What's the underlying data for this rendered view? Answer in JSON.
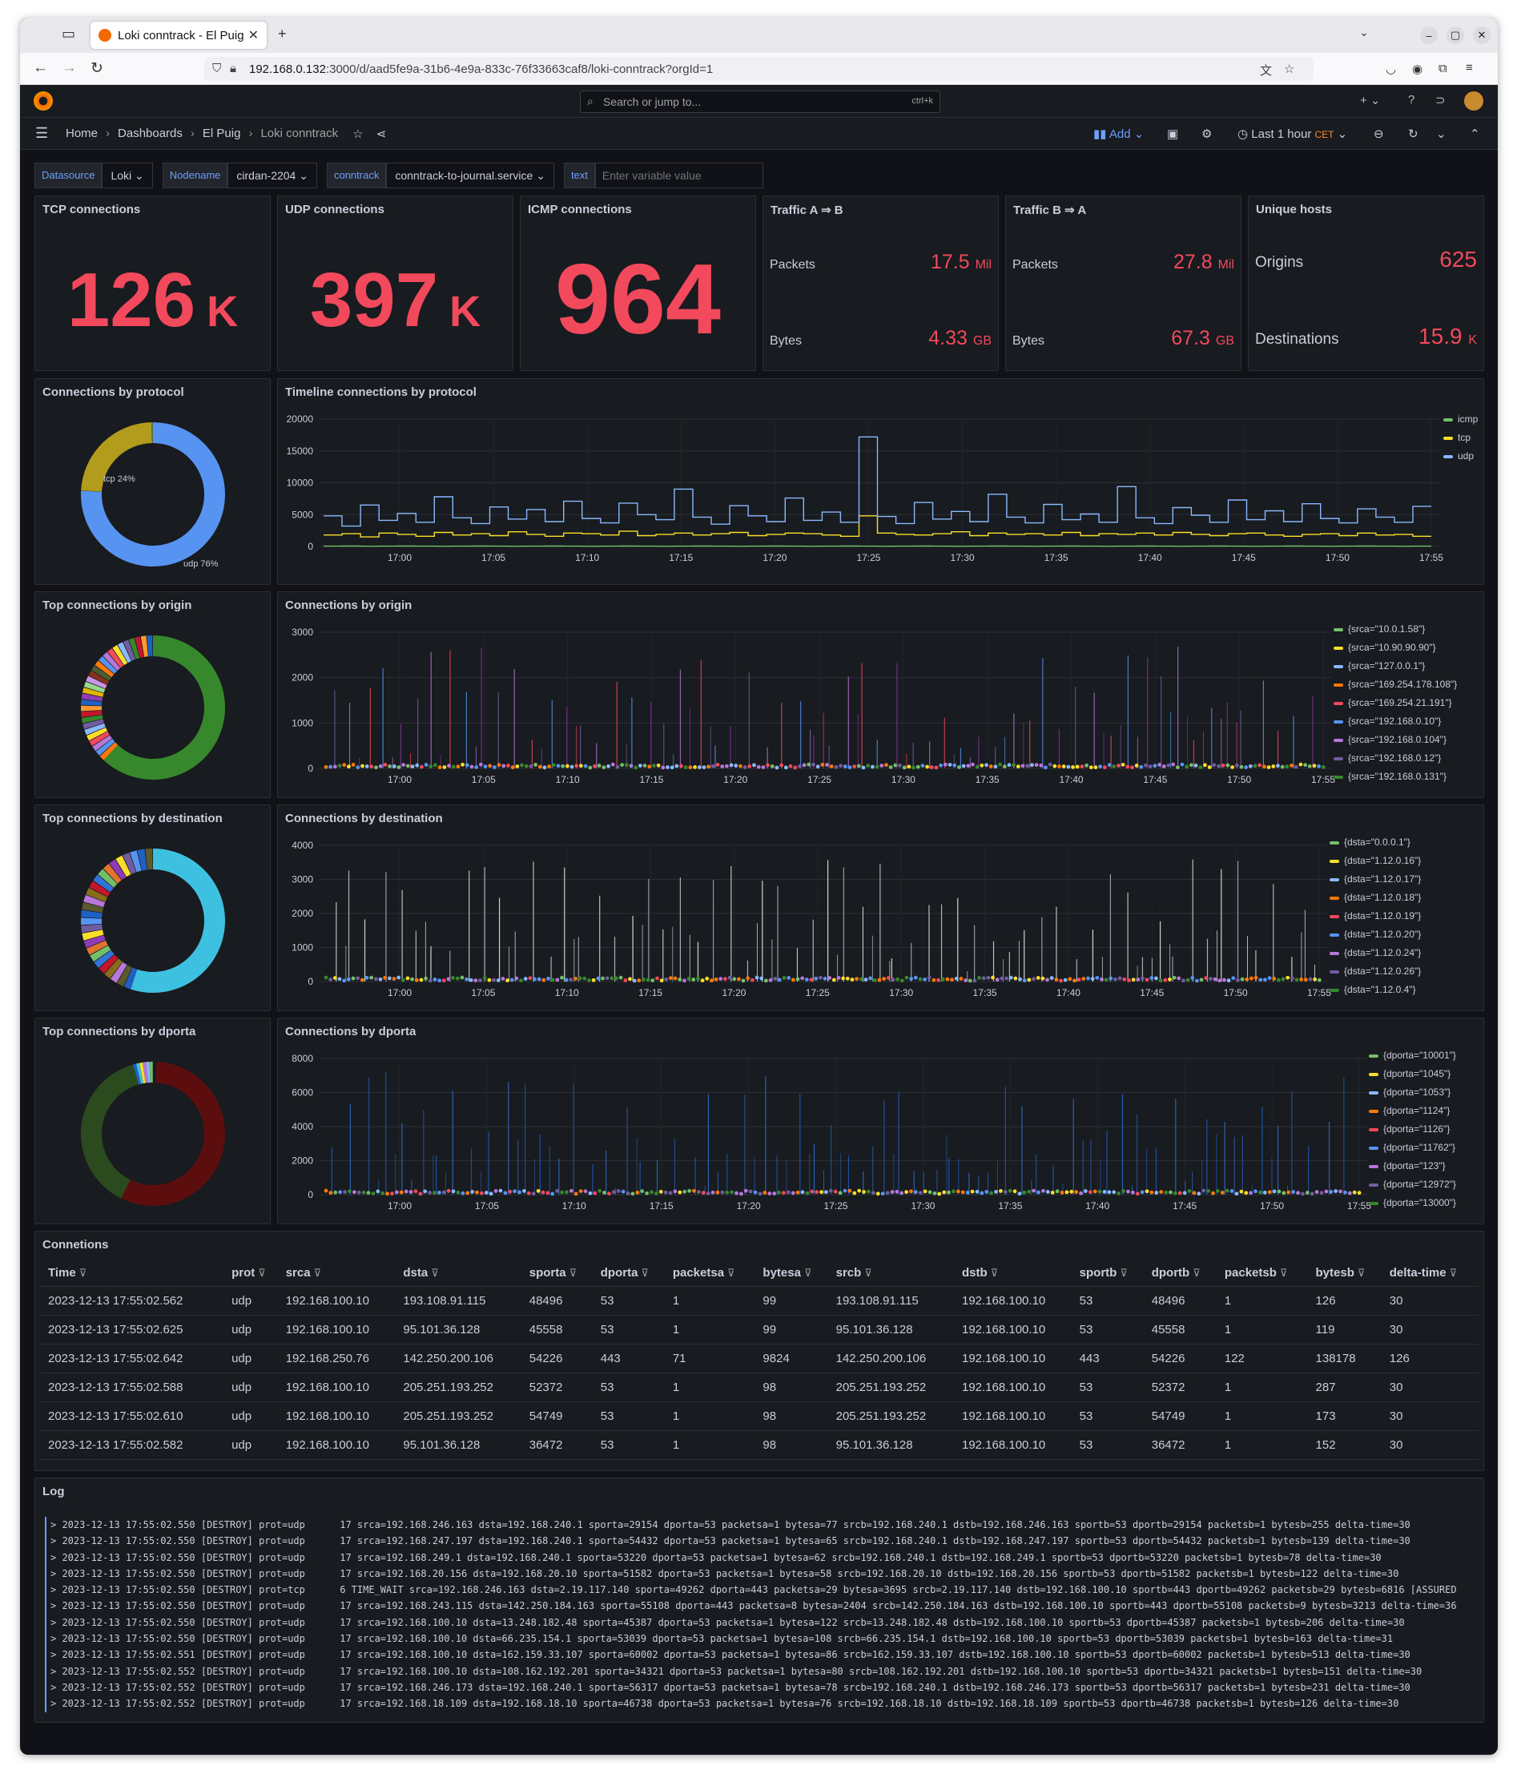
{
  "browser": {
    "tab_title": "Loki conntrack - El Puig - ",
    "url_host": "192.168.0.132",
    "url_rest": ":3000/d/aad5fe9a-31b6-4e9a-833c-76f33663caf8/loki-conntrack?orgId=1"
  },
  "grafana": {
    "search_placeholder": "Search or jump to...",
    "search_shortcut": "ctrl+k",
    "breadcrumb": [
      "Home",
      "Dashboards",
      "El Puig",
      "Loki conntrack"
    ],
    "add_label": "Add",
    "time_range": "Last 1 hour",
    "timezone": "CET"
  },
  "variables": [
    {
      "label": "Datasource",
      "value": "Loki"
    },
    {
      "label": "Nodename",
      "value": "cirdan-2204"
    },
    {
      "label": "conntrack",
      "value": "conntrack-to-journal.service"
    },
    {
      "label": "text",
      "placeholder": "Enter variable value"
    }
  ],
  "stats": {
    "tcp": {
      "title": "TCP connections",
      "value": "126",
      "unit": "K"
    },
    "udp": {
      "title": "UDP connections",
      "value": "397",
      "unit": "K"
    },
    "icmp": {
      "title": "ICMP connections",
      "value": "964",
      "unit": ""
    },
    "traffic_ab": {
      "title": "Traffic A ⇒ B",
      "packets_label": "Packets",
      "packets": "17.5",
      "packets_unit": "Mil",
      "bytes_label": "Bytes",
      "bytes": "4.33",
      "bytes_unit": "GB"
    },
    "traffic_ba": {
      "title": "Traffic B ⇒ A",
      "packets_label": "Packets",
      "packets": "27.8",
      "packets_unit": "Mil",
      "bytes_label": "Bytes",
      "bytes": "67.3",
      "bytes_unit": "GB"
    },
    "hosts": {
      "title": "Unique hosts",
      "origins_label": "Origins",
      "origins": "625",
      "dest_label": "Destinations",
      "dest": "15.9",
      "dest_unit": "K"
    }
  },
  "panels": {
    "protocol_pie": "Connections by protocol",
    "timeline": "Timeline connections by protocol",
    "origin_pie": "Top connections by origin",
    "origin_ts": "Connections by origin",
    "dest_pie": "Top connections by destination",
    "dest_ts": "Connections by destination",
    "dporta_pie": "Top connections by dporta",
    "dporta_ts": "Connections by dporta",
    "table": "Connetions",
    "log": "Log"
  },
  "chart_data": [
    {
      "type": "pie",
      "title": "Connections by protocol",
      "categories": [
        "udp",
        "tcp",
        "icmp"
      ],
      "values": [
        76,
        24,
        0.2
      ],
      "labels": [
        "udp 76%",
        "tcp 24%"
      ],
      "colors": [
        "#5794f2",
        "#b39b1c",
        "#73bf69"
      ]
    },
    {
      "type": "line",
      "title": "Timeline connections by protocol",
      "x_ticks": [
        "17:00",
        "17:05",
        "17:10",
        "17:15",
        "17:20",
        "17:25",
        "17:30",
        "17:35",
        "17:40",
        "17:45",
        "17:50",
        "17:55"
      ],
      "y_ticks": [
        "0",
        "5000",
        "10000",
        "15000",
        "20000"
      ],
      "ylim": [
        0,
        20000
      ],
      "series": [
        {
          "name": "icmp",
          "color": "#73bf69",
          "values": [
            50,
            60,
            40,
            50,
            60,
            50,
            40,
            50,
            60,
            50,
            40,
            50,
            60,
            50,
            40,
            50,
            60,
            50,
            40,
            50,
            60,
            50,
            40,
            50,
            60,
            50,
            40,
            50,
            60,
            50,
            40,
            50,
            60,
            50,
            40,
            50,
            60,
            50,
            40,
            50,
            60,
            50,
            40,
            50,
            60,
            50,
            40,
            50,
            60,
            50,
            40,
            50,
            60,
            50,
            40,
            50,
            60,
            50,
            40,
            50
          ]
        },
        {
          "name": "tcp",
          "color": "#fade2a",
          "values": [
            1800,
            2000,
            1500,
            2100,
            1900,
            1600,
            2200,
            1800,
            2000,
            1700,
            2300,
            1900,
            1600,
            2100,
            2000,
            1800,
            2400,
            1700,
            1900,
            2100,
            1800,
            2000,
            2200,
            1700,
            1900,
            2100,
            2000,
            1800,
            1600,
            4800,
            2100,
            1900,
            1800,
            2000,
            2300,
            1700,
            2100,
            1900,
            2000,
            1800,
            2200,
            1700,
            2000,
            1900,
            2100,
            1800,
            2200,
            1900,
            1700,
            2000,
            2100,
            1800,
            1600,
            1900,
            2000,
            1700,
            2100,
            1800,
            1900,
            1600
          ]
        },
        {
          "name": "udp",
          "color": "#8ab8ff",
          "values": [
            4800,
            3200,
            6500,
            4100,
            5200,
            3800,
            7800,
            4500,
            3600,
            6200,
            4300,
            5800,
            3900,
            7100,
            4400,
            3700,
            6800,
            5000,
            4200,
            9000,
            4600,
            3500,
            6400,
            4800,
            3900,
            7600,
            4100,
            5400,
            3800,
            17200,
            4700,
            3600,
            6900,
            4300,
            5500,
            3900,
            8200,
            4600,
            3700,
            6600,
            4200,
            5100,
            3800,
            9400,
            4500,
            3600,
            6100,
            4900,
            3800,
            7300,
            4200,
            5600,
            3900,
            6700,
            4400,
            3700,
            5900,
            4600,
            3800,
            6300
          ]
        }
      ]
    },
    {
      "type": "scatter",
      "title": "Connections by origin",
      "x_ticks": [
        "17:00",
        "17:05",
        "17:10",
        "17:15",
        "17:20",
        "17:25",
        "17:30",
        "17:35",
        "17:40",
        "17:45",
        "17:50",
        "17:55"
      ],
      "y_ticks": [
        "0",
        "1000",
        "2000",
        "3000"
      ],
      "ylim": [
        0,
        3000
      ],
      "series": [
        {
          "name": "{srca=\"10.0.1.58\"}",
          "color": "#73bf69"
        },
        {
          "name": "{srca=\"10.90.90.90\"}",
          "color": "#fade2a"
        },
        {
          "name": "{srca=\"127.0.0.1\"}",
          "color": "#8ab8ff"
        },
        {
          "name": "{srca=\"169.254.178.108\"}",
          "color": "#ff780a"
        },
        {
          "name": "{srca=\"169.254.21.191\"}",
          "color": "#f2495c"
        },
        {
          "name": "{srca=\"192.168.0.10\"}",
          "color": "#5794f2"
        },
        {
          "name": "{srca=\"192.168.0.104\"}",
          "color": "#b877d9"
        },
        {
          "name": "{srca=\"192.168.0.12\"}",
          "color": "#705da0"
        },
        {
          "name": "{srca=\"192.168.0.131\"}",
          "color": "#37872d"
        }
      ]
    },
    {
      "type": "scatter",
      "title": "Connections by destination",
      "x_ticks": [
        "17:00",
        "17:05",
        "17:10",
        "17:15",
        "17:20",
        "17:25",
        "17:30",
        "17:35",
        "17:40",
        "17:45",
        "17:50",
        "17:55"
      ],
      "y_ticks": [
        "0",
        "1000",
        "2000",
        "3000",
        "4000"
      ],
      "ylim": [
        0,
        4000
      ],
      "series": [
        {
          "name": "{dsta=\"0.0.0.1\"}",
          "color": "#73bf69"
        },
        {
          "name": "{dsta=\"1.12.0.16\"}",
          "color": "#fade2a"
        },
        {
          "name": "{dsta=\"1.12.0.17\"}",
          "color": "#8ab8ff"
        },
        {
          "name": "{dsta=\"1.12.0.18\"}",
          "color": "#ff780a"
        },
        {
          "name": "{dsta=\"1.12.0.19\"}",
          "color": "#f2495c"
        },
        {
          "name": "{dsta=\"1.12.0.20\"}",
          "color": "#5794f2"
        },
        {
          "name": "{dsta=\"1.12.0.24\"}",
          "color": "#b877d9"
        },
        {
          "name": "{dsta=\"1.12.0.26\"}",
          "color": "#705da0"
        },
        {
          "name": "{dsta=\"1.12.0.4\"}",
          "color": "#37872d"
        }
      ]
    },
    {
      "type": "scatter",
      "title": "Connections by dporta",
      "x_ticks": [
        "17:00",
        "17:05",
        "17:10",
        "17:15",
        "17:20",
        "17:25",
        "17:30",
        "17:35",
        "17:40",
        "17:45",
        "17:50",
        "17:55"
      ],
      "y_ticks": [
        "0",
        "2000",
        "4000",
        "6000",
        "8000"
      ],
      "ylim": [
        0,
        8000
      ],
      "series": [
        {
          "name": "{dporta=\"10001\"}",
          "color": "#73bf69"
        },
        {
          "name": "{dporta=\"1045\"}",
          "color": "#fade2a"
        },
        {
          "name": "{dporta=\"1053\"}",
          "color": "#8ab8ff"
        },
        {
          "name": "{dporta=\"1124\"}",
          "color": "#ff780a"
        },
        {
          "name": "{dporta=\"1126\"}",
          "color": "#f2495c"
        },
        {
          "name": "{dporta=\"11762\"}",
          "color": "#5794f2"
        },
        {
          "name": "{dporta=\"123\"}",
          "color": "#b877d9"
        },
        {
          "name": "{dporta=\"12972\"}",
          "color": "#705da0"
        },
        {
          "name": "{dporta=\"13000\"}",
          "color": "#37872d"
        }
      ]
    }
  ],
  "table": {
    "columns": [
      "Time",
      "prot",
      "srca",
      "dsta",
      "sporta",
      "dporta",
      "packetsa",
      "bytesa",
      "srcb",
      "dstb",
      "sportb",
      "dportb",
      "packetsb",
      "bytesb",
      "delta-time"
    ],
    "rows": [
      [
        "2023-12-13 17:55:02.562",
        "udp",
        "192.168.100.10",
        "193.108.91.115",
        "48496",
        "53",
        "1",
        "99",
        "193.108.91.115",
        "192.168.100.10",
        "53",
        "48496",
        "1",
        "126",
        "30"
      ],
      [
        "2023-12-13 17:55:02.625",
        "udp",
        "192.168.100.10",
        "95.101.36.128",
        "45558",
        "53",
        "1",
        "99",
        "95.101.36.128",
        "192.168.100.10",
        "53",
        "45558",
        "1",
        "119",
        "30"
      ],
      [
        "2023-12-13 17:55:02.642",
        "udp",
        "192.168.250.76",
        "142.250.200.106",
        "54226",
        "443",
        "71",
        "9824",
        "142.250.200.106",
        "192.168.100.10",
        "443",
        "54226",
        "122",
        "138178",
        "126"
      ],
      [
        "2023-12-13 17:55:02.588",
        "udp",
        "192.168.100.10",
        "205.251.193.252",
        "52372",
        "53",
        "1",
        "98",
        "205.251.193.252",
        "192.168.100.10",
        "53",
        "52372",
        "1",
        "287",
        "30"
      ],
      [
        "2023-12-13 17:55:02.610",
        "udp",
        "192.168.100.10",
        "205.251.193.252",
        "54749",
        "53",
        "1",
        "98",
        "205.251.193.252",
        "192.168.100.10",
        "53",
        "54749",
        "1",
        "173",
        "30"
      ],
      [
        "2023-12-13 17:55:02.582",
        "udp",
        "192.168.100.10",
        "95.101.36.128",
        "36472",
        "53",
        "1",
        "98",
        "95.101.36.128",
        "192.168.100.10",
        "53",
        "36472",
        "1",
        "152",
        "30"
      ]
    ]
  },
  "log": [
    "2023-12-13 17:55:02.550 [DESTROY] prot=udp      17 srca=192.168.246.163 dsta=192.168.240.1 sporta=29154 dporta=53 packetsa=1 bytesa=77 srcb=192.168.240.1 dstb=192.168.246.163 sportb=53 dportb=29154 packetsb=1 bytesb=255 delta-time=30",
    "2023-12-13 17:55:02.550 [DESTROY] prot=udp      17 srca=192.168.247.197 dsta=192.168.240.1 sporta=54432 dporta=53 packetsa=1 bytesa=65 srcb=192.168.240.1 dstb=192.168.247.197 sportb=53 dportb=54432 packetsb=1 bytesb=139 delta-time=30",
    "2023-12-13 17:55:02.550 [DESTROY] prot=udp      17 srca=192.168.249.1 dsta=192.168.240.1 sporta=53220 dporta=53 packetsa=1 bytesa=62 srcb=192.168.240.1 dstb=192.168.249.1 sportb=53 dportb=53220 packetsb=1 bytesb=78 delta-time=30",
    "2023-12-13 17:55:02.550 [DESTROY] prot=udp      17 srca=192.168.20.156 dsta=192.168.20.10 sporta=51582 dporta=53 packetsa=1 bytesa=58 srcb=192.168.20.10 dstb=192.168.20.156 sportb=53 dportb=51582 packetsb=1 bytesb=122 delta-time=30",
    "2023-12-13 17:55:02.550 [DESTROY] prot=tcp      6 TIME_WAIT srca=192.168.246.163 dsta=2.19.117.140 sporta=49262 dporta=443 packetsa=29 bytesa=3695 srcb=2.19.117.140 dstb=192.168.100.10 sportb=443 dportb=49262 packetsb=29 bytesb=6816 [ASSURED",
    "2023-12-13 17:55:02.550 [DESTROY] prot=udp      17 srca=192.168.243.115 dsta=142.250.184.163 sporta=55108 dporta=443 packetsa=8 bytesa=2404 srcb=142.250.184.163 dstb=192.168.100.10 sportb=443 dportb=55108 packetsb=9 bytesb=3213 delta-time=36",
    "2023-12-13 17:55:02.550 [DESTROY] prot=udp      17 srca=192.168.100.10 dsta=13.248.182.48 sporta=45387 dporta=53 packetsa=1 bytesa=122 srcb=13.248.182.48 dstb=192.168.100.10 sportb=53 dportb=45387 packetsb=1 bytesb=206 delta-time=30",
    "2023-12-13 17:55:02.550 [DESTROY] prot=udp      17 srca=192.168.100.10 dsta=66.235.154.1 sporta=53039 dporta=53 packetsa=1 bytesa=108 srcb=66.235.154.1 dstb=192.168.100.10 sportb=53 dportb=53039 packetsb=1 bytesb=163 delta-time=31",
    "2023-12-13 17:55:02.551 [DESTROY] prot=udp      17 srca=192.168.100.10 dsta=162.159.33.107 sporta=60002 dporta=53 packetsa=1 bytesa=86 srcb=162.159.33.107 dstb=192.168.100.10 sportb=53 dportb=60002 packetsb=1 bytesb=513 delta-time=30",
    "2023-12-13 17:55:02.552 [DESTROY] prot=udp      17 srca=192.168.100.10 dsta=108.162.192.201 sporta=34321 dporta=53 packetsa=1 bytesa=80 srcb=108.162.192.201 dstb=192.168.100.10 sportb=53 dportb=34321 packetsb=1 bytesb=151 delta-time=30",
    "2023-12-13 17:55:02.552 [DESTROY] prot=udp      17 srca=192.168.246.173 dsta=192.168.240.1 sporta=56317 dporta=53 packetsa=1 bytesa=78 srcb=192.168.240.1 dstb=192.168.246.173 sportb=53 dportb=56317 packetsb=1 bytesb=231 delta-time=30",
    "2023-12-13 17:55:02.552 [DESTROY] prot=udp      17 srca=192.168.18.109 dsta=192.168.18.10 sporta=46738 dporta=53 packetsa=1 bytesa=76 srcb=192.168.18.10 dstb=192.168.18.109 sportb=53 dportb=46738 packetsb=1 bytesb=126 delta-time=30"
  ]
}
